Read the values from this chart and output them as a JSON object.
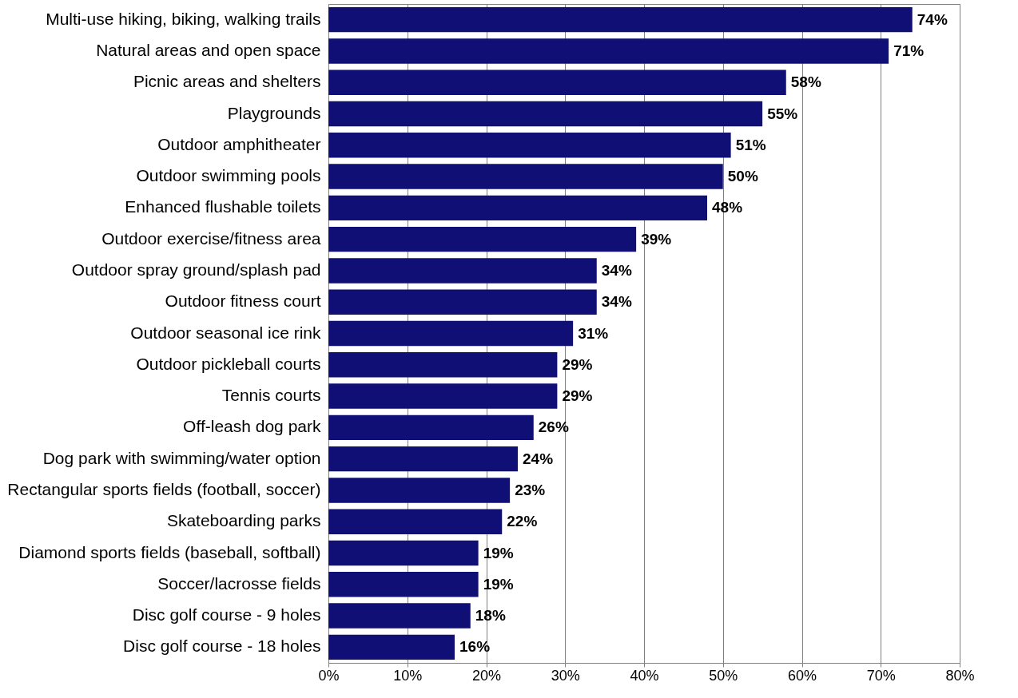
{
  "chart_data": {
    "type": "bar",
    "orientation": "horizontal",
    "categories": [
      "Multi-use hiking, biking, walking trails",
      "Natural areas and open space",
      "Picnic areas and shelters",
      "Playgrounds",
      "Outdoor amphitheater",
      "Outdoor swimming pools",
      "Enhanced flushable toilets",
      "Outdoor exercise/fitness area",
      "Outdoor spray ground/splash pad",
      "Outdoor fitness court",
      "Outdoor seasonal ice rink",
      "Outdoor pickleball courts",
      "Tennis courts",
      "Off-leash dog park",
      "Dog park with swimming/water option",
      "Rectangular sports fields (football, soccer)",
      "Skateboarding parks",
      "Diamond sports fields (baseball, softball)",
      "Soccer/lacrosse fields",
      "Disc golf course - 9 holes",
      "Disc golf course - 18 holes"
    ],
    "values": [
      74,
      71,
      58,
      55,
      51,
      50,
      48,
      39,
      34,
      34,
      31,
      29,
      29,
      26,
      24,
      23,
      22,
      19,
      19,
      18,
      16
    ],
    "value_labels": [
      "74%",
      "71%",
      "58%",
      "55%",
      "51%",
      "50%",
      "48%",
      "39%",
      "34%",
      "34%",
      "31%",
      "29%",
      "29%",
      "26%",
      "24%",
      "23%",
      "22%",
      "19%",
      "19%",
      "18%",
      "16%"
    ],
    "color": "#0f0f75",
    "xlim": [
      0,
      80
    ],
    "xticks": [
      {
        "value": 0,
        "label": "0%"
      },
      {
        "value": 10,
        "label": "10%"
      },
      {
        "value": 20,
        "label": "20%"
      },
      {
        "value": 30,
        "label": "30%"
      },
      {
        "value": 40,
        "label": "40%"
      },
      {
        "value": 50,
        "label": "50%"
      },
      {
        "value": 60,
        "label": "60%"
      },
      {
        "value": 70,
        "label": "70%"
      },
      {
        "value": 80,
        "label": "80%"
      }
    ],
    "grid": "x"
  }
}
